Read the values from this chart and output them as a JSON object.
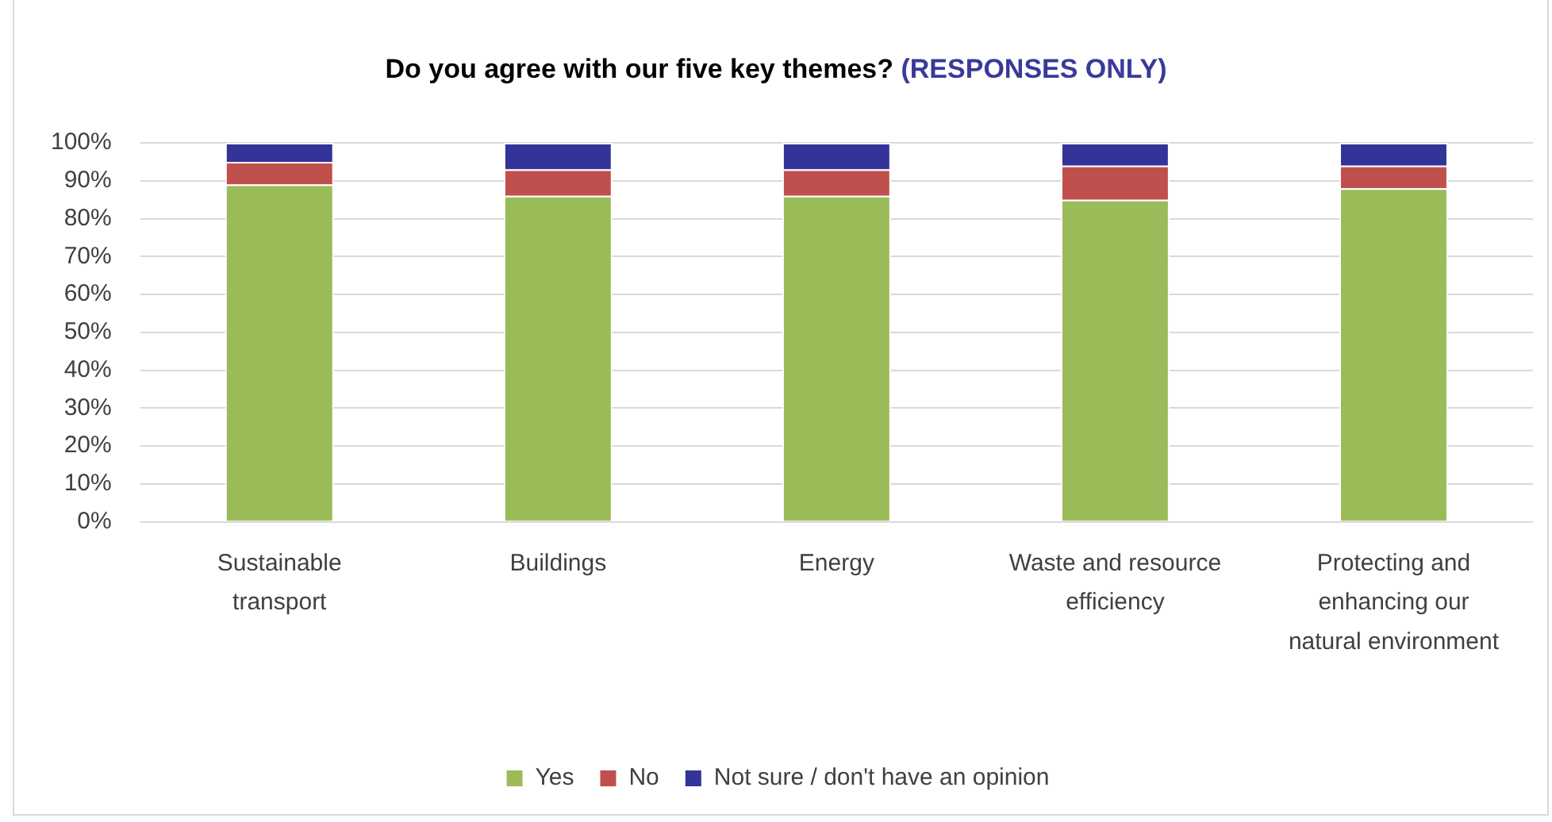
{
  "chart_data": {
    "type": "bar",
    "title": "Do you agree with our five key themes?",
    "subtitle": "(RESPONSES ONLY)",
    "categories": [
      "Sustainable transport",
      "Buildings",
      "Energy",
      "Waste and resource efficiency",
      "Protecting and enhancing our natural environment"
    ],
    "series": [
      {
        "name": "Yes",
        "color": "#9bbb59",
        "values": [
          89,
          86,
          86,
          85,
          88
        ]
      },
      {
        "name": "No",
        "color": "#c0504d",
        "values": [
          6,
          7,
          7,
          9,
          6
        ]
      },
      {
        "name": "Not sure / don't have an opinion",
        "color": "#333399",
        "values": [
          5,
          7,
          7,
          6,
          6
        ]
      }
    ],
    "stacked": true,
    "ylim": [
      0,
      100
    ],
    "yticks": [
      {
        "value": 0,
        "label": "0%"
      },
      {
        "value": 10,
        "label": "10%"
      },
      {
        "value": 20,
        "label": "20%"
      },
      {
        "value": 30,
        "label": "30%"
      },
      {
        "value": 40,
        "label": "40%"
      },
      {
        "value": 50,
        "label": "50%"
      },
      {
        "value": 60,
        "label": "60%"
      },
      {
        "value": 70,
        "label": "70%"
      },
      {
        "value": 80,
        "label": "80%"
      },
      {
        "value": 90,
        "label": "90%"
      },
      {
        "value": 100,
        "label": "100%"
      }
    ],
    "grid": "y",
    "legend": "bottom"
  }
}
